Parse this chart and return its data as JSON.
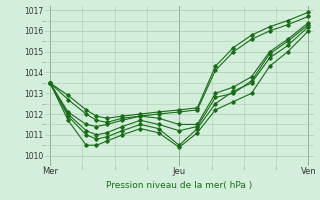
{
  "title": "Pression niveau de la mer( hPa )",
  "background_color": "#d4eedc",
  "grid_color": "#aaccaa",
  "line_color": "#1a6b1a",
  "ylim": [
    1009.5,
    1017.2
  ],
  "yticks": [
    1010,
    1011,
    1012,
    1013,
    1014,
    1015,
    1016,
    1017
  ],
  "xtick_labels": [
    "Mer",
    "Jeu",
    "Ven"
  ],
  "xtick_positions": [
    0,
    0.5,
    1.0
  ],
  "vlines": [
    0.0,
    0.5,
    1.0
  ],
  "xlim": [
    -0.02,
    1.02
  ],
  "series": [
    {
      "x": [
        0.0,
        0.07,
        0.14,
        0.18,
        0.22,
        0.28,
        0.35,
        0.42,
        0.5,
        0.57,
        0.64,
        0.71,
        0.78,
        0.85,
        0.92,
        1.0
      ],
      "y": [
        1013.5,
        1012.9,
        1012.2,
        1011.9,
        1011.8,
        1011.9,
        1012.0,
        1012.1,
        1012.2,
        1012.3,
        1014.3,
        1015.2,
        1015.8,
        1016.2,
        1016.5,
        1016.9
      ]
    },
    {
      "x": [
        0.0,
        0.07,
        0.14,
        0.18,
        0.22,
        0.28,
        0.35,
        0.42,
        0.5,
        0.57,
        0.64,
        0.71,
        0.78,
        0.85,
        0.92,
        1.0
      ],
      "y": [
        1013.5,
        1012.7,
        1012.0,
        1011.7,
        1011.6,
        1011.8,
        1011.9,
        1012.0,
        1012.1,
        1012.2,
        1014.1,
        1015.0,
        1015.6,
        1016.0,
        1016.3,
        1016.7
      ]
    },
    {
      "x": [
        0.0,
        0.07,
        0.14,
        0.18,
        0.22,
        0.28,
        0.35,
        0.42,
        0.5,
        0.57,
        0.64,
        0.71,
        0.78,
        0.85,
        0.92,
        1.0
      ],
      "y": [
        1013.5,
        1012.1,
        1011.5,
        1011.4,
        1011.5,
        1011.7,
        1011.9,
        1011.8,
        1011.5,
        1011.5,
        1013.0,
        1013.3,
        1013.8,
        1015.0,
        1015.6,
        1016.4
      ]
    },
    {
      "x": [
        0.0,
        0.07,
        0.14,
        0.18,
        0.22,
        0.28,
        0.35,
        0.42,
        0.5,
        0.57,
        0.64,
        0.71,
        0.78,
        0.85,
        0.92,
        1.0
      ],
      "y": [
        1013.5,
        1012.0,
        1011.2,
        1011.0,
        1011.1,
        1011.4,
        1011.7,
        1011.5,
        1011.2,
        1011.4,
        1012.8,
        1013.0,
        1013.6,
        1014.9,
        1015.5,
        1016.3
      ]
    },
    {
      "x": [
        0.0,
        0.07,
        0.14,
        0.18,
        0.22,
        0.28,
        0.35,
        0.42,
        0.5,
        0.57,
        0.64,
        0.71,
        0.78,
        0.85,
        0.92,
        1.0
      ],
      "y": [
        1013.5,
        1011.9,
        1011.0,
        1010.8,
        1010.9,
        1011.2,
        1011.5,
        1011.3,
        1010.5,
        1011.3,
        1012.5,
        1013.1,
        1013.5,
        1014.7,
        1015.3,
        1016.2
      ]
    },
    {
      "x": [
        0.0,
        0.07,
        0.14,
        0.18,
        0.22,
        0.28,
        0.35,
        0.42,
        0.5,
        0.57,
        0.64,
        0.71,
        0.78,
        0.85,
        0.92,
        1.0
      ],
      "y": [
        1013.5,
        1011.7,
        1010.5,
        1010.5,
        1010.7,
        1011.0,
        1011.3,
        1011.1,
        1010.4,
        1011.1,
        1012.2,
        1012.6,
        1013.0,
        1014.3,
        1015.0,
        1016.0
      ]
    }
  ]
}
